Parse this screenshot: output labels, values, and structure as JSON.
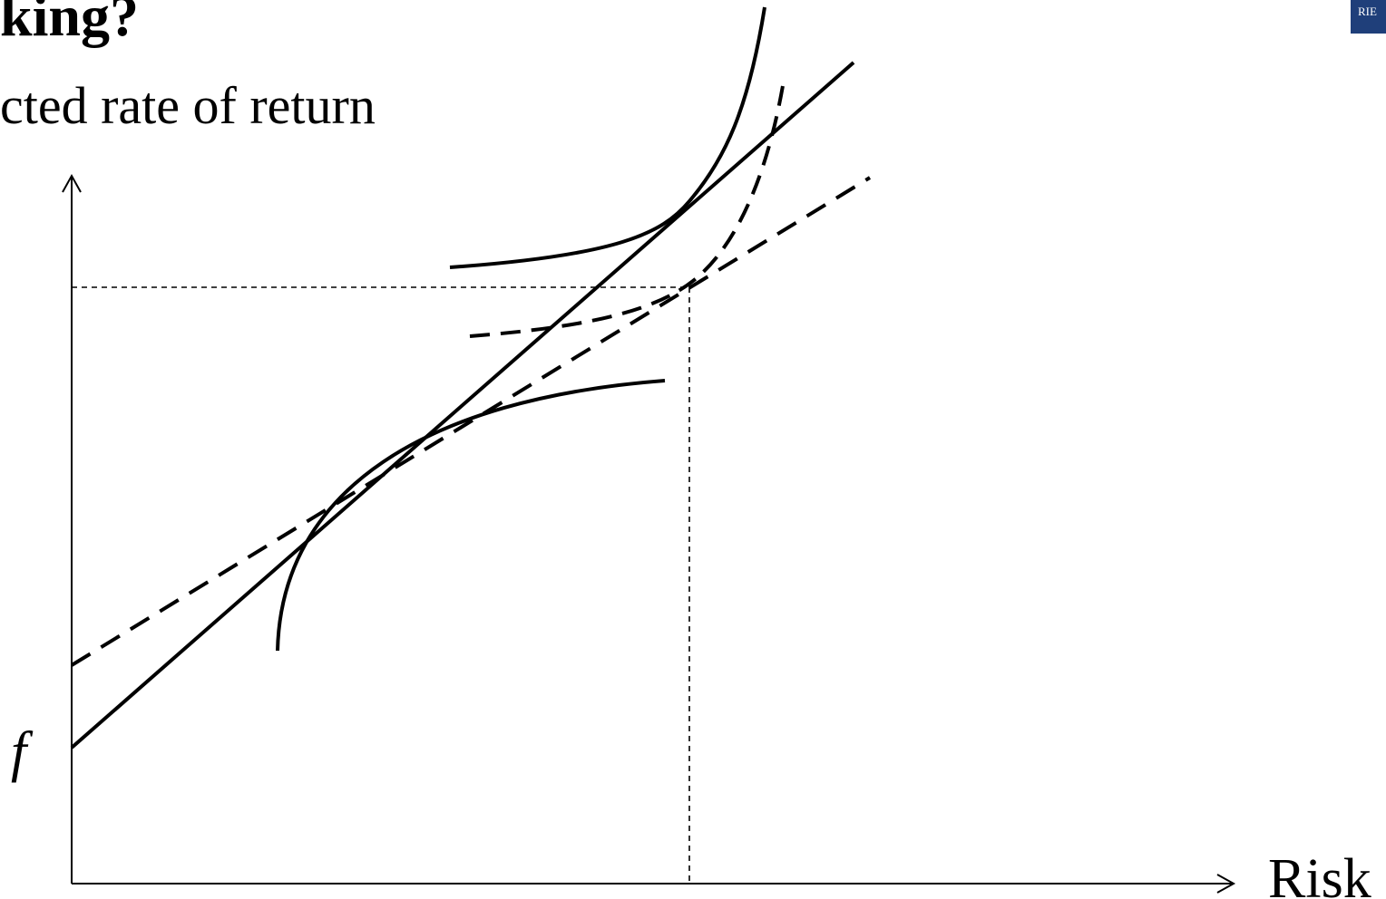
{
  "slide": {
    "title": "king?",
    "subtitle": "cted rate of return",
    "logo_text": "RIE",
    "brand_color": "#1f3f7a"
  },
  "diagram": {
    "y_intercept_label": "f",
    "x_axis_label": "Risk",
    "line_color": "#000000"
  }
}
